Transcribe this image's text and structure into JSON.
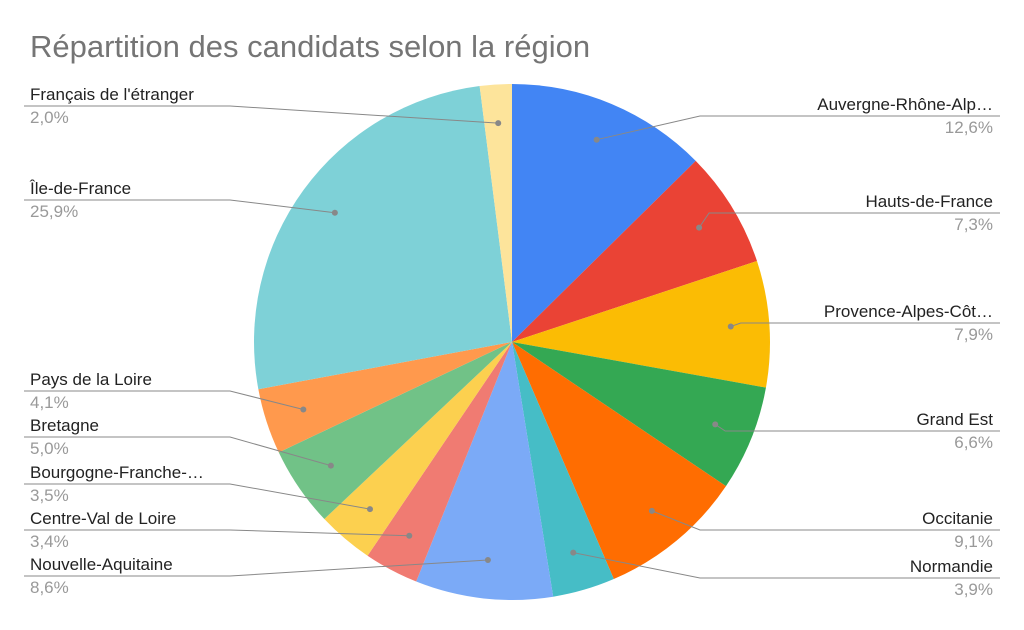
{
  "chart_data": {
    "type": "pie",
    "title": "Répartition des candidats selon la région",
    "categories": [
      "Auvergne-Rhône-Alp…",
      "Hauts-de-France",
      "Provence-Alpes-Côt…",
      "Grand Est",
      "Occitanie",
      "Normandie",
      "Nouvelle-Aquitaine",
      "Centre-Val de Loire",
      "Bourgogne-Franche-…",
      "Bretagne",
      "Pays de la Loire",
      "Île-de-France",
      "Français de l'étranger"
    ],
    "values": [
      12.6,
      7.3,
      7.9,
      6.6,
      9.1,
      3.9,
      8.6,
      3.4,
      3.5,
      5.0,
      4.1,
      25.9,
      2.0
    ],
    "value_labels": [
      "12,6%",
      "7,3%",
      "7,9%",
      "6,6%",
      "9,1%",
      "3,9%",
      "8,6%",
      "3,4%",
      "3,5%",
      "5,0%",
      "4,1%",
      "25,9%",
      "2,0%"
    ],
    "colors": [
      "#4285f4",
      "#ea4335",
      "#fbbc04",
      "#34a853",
      "#ff6d01",
      "#46bdc6",
      "#7baaf7",
      "#f07b72",
      "#fcd04f",
      "#71c287",
      "#ff994d",
      "#7ed1d7",
      "#fde49b"
    ]
  }
}
